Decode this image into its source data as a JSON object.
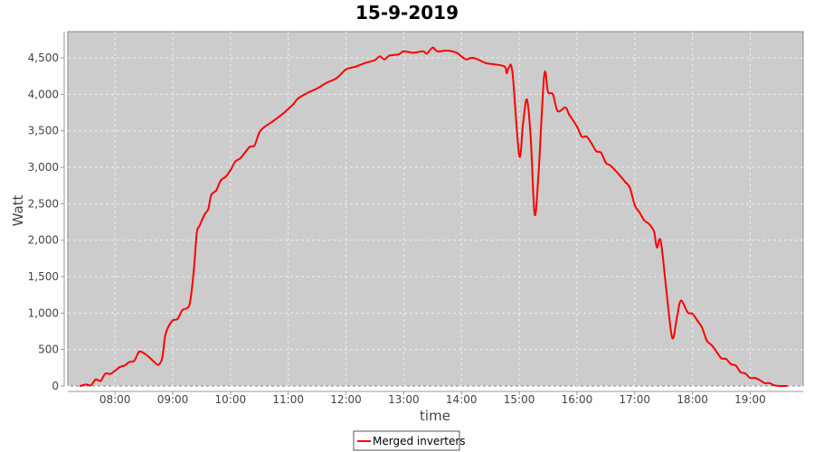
{
  "chart_data": {
    "type": "line",
    "title": "15-9-2019",
    "xlabel": "time",
    "ylabel": "Watt",
    "xlim": [
      "07:11",
      "19:55"
    ],
    "ylim": [
      0,
      4860
    ],
    "x_ticks": [
      "08:00",
      "09:00",
      "10:00",
      "11:00",
      "12:00",
      "13:00",
      "14:00",
      "15:00",
      "16:00",
      "17:00",
      "18:00",
      "19:00"
    ],
    "y_ticks": [
      "0",
      "500",
      "1,000",
      "1,500",
      "2,000",
      "2,500",
      "3,000",
      "3,500",
      "4,000",
      "4,500"
    ],
    "y_tick_values": [
      0,
      500,
      1000,
      1500,
      2000,
      2500,
      3000,
      3500,
      4000,
      4500
    ],
    "grid": true,
    "legend_position": "bottom",
    "colors": {
      "series": "#ff0000",
      "plot_background": "#cccccc",
      "grid": "#eeeeee"
    },
    "series": [
      {
        "name": "Merged inverters",
        "x": [
          "07:24",
          "07:30",
          "07:35",
          "07:40",
          "07:45",
          "07:50",
          "07:55",
          "08:00",
          "08:05",
          "08:10",
          "08:15",
          "08:20",
          "08:25",
          "08:30",
          "08:35",
          "08:40",
          "08:45",
          "08:49",
          "08:52",
          "08:55",
          "09:00",
          "09:05",
          "09:10",
          "09:15",
          "09:18",
          "09:22",
          "09:25",
          "09:28",
          "09:33",
          "09:37",
          "09:40",
          "09:45",
          "09:50",
          "09:55",
          "10:00",
          "10:05",
          "10:10",
          "10:15",
          "10:20",
          "10:25",
          "10:30",
          "10:35",
          "10:45",
          "10:55",
          "11:00",
          "11:05",
          "11:10",
          "11:20",
          "11:30",
          "11:40",
          "11:50",
          "12:00",
          "12:10",
          "12:20",
          "12:30",
          "12:35",
          "12:40",
          "12:45",
          "12:55",
          "13:00",
          "13:10",
          "13:20",
          "13:24",
          "13:30",
          "13:35",
          "13:45",
          "13:55",
          "14:00",
          "14:05",
          "14:10",
          "14:15",
          "14:25",
          "14:35",
          "14:45",
          "14:47",
          "14:49",
          "14:53",
          "15:00",
          "15:04",
          "15:08",
          "15:12",
          "15:16",
          "15:20",
          "15:26",
          "15:30",
          "15:35",
          "15:40",
          "15:48",
          "15:52",
          "16:00",
          "16:05",
          "16:10",
          "16:15",
          "16:20",
          "16:25",
          "16:30",
          "16:35",
          "16:45",
          "16:50",
          "16:55",
          "17:00",
          "17:05",
          "17:10",
          "17:15",
          "17:20",
          "17:23",
          "17:27",
          "17:33",
          "17:39",
          "17:44",
          "17:48",
          "17:55",
          "18:00",
          "18:05",
          "18:10",
          "18:15",
          "18:20",
          "18:25",
          "18:30",
          "18:35",
          "18:40",
          "18:45",
          "18:50",
          "18:55",
          "19:00",
          "19:05",
          "19:10",
          "19:15",
          "19:20",
          "19:25",
          "19:30",
          "19:38"
        ],
        "values": [
          0,
          20,
          10,
          90,
          70,
          170,
          165,
          210,
          260,
          280,
          330,
          345,
          470,
          450,
          400,
          340,
          290,
          380,
          680,
          800,
          900,
          920,
          1040,
          1070,
          1150,
          1600,
          2100,
          2200,
          2350,
          2430,
          2620,
          2680,
          2820,
          2870,
          2960,
          3080,
          3120,
          3200,
          3280,
          3300,
          3480,
          3550,
          3640,
          3740,
          3800,
          3860,
          3940,
          4020,
          4080,
          4160,
          4220,
          4340,
          4380,
          4430,
          4470,
          4520,
          4480,
          4530,
          4550,
          4590,
          4570,
          4590,
          4560,
          4640,
          4590,
          4600,
          4570,
          4520,
          4480,
          4500,
          4490,
          4430,
          4410,
          4380,
          4290,
          4360,
          4300,
          3160,
          3600,
          3930,
          3400,
          2355,
          2900,
          4260,
          4030,
          4000,
          3770,
          3820,
          3720,
          3560,
          3420,
          3420,
          3330,
          3220,
          3200,
          3060,
          3020,
          2880,
          2800,
          2720,
          2480,
          2380,
          2270,
          2220,
          2120,
          1900,
          1990,
          1300,
          660,
          950,
          1170,
          1010,
          990,
          900,
          800,
          620,
          560,
          470,
          380,
          370,
          300,
          280,
          190,
          170,
          110,
          110,
          80,
          40,
          40,
          10,
          0,
          0
        ]
      }
    ]
  }
}
